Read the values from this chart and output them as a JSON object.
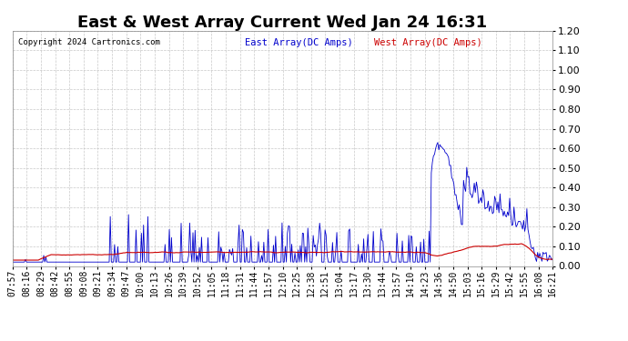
{
  "title": "East & West Array Current Wed Jan 24 16:31",
  "copyright": "Copyright 2024 Cartronics.com",
  "legend_east": "East Array(DC Amps)",
  "legend_west": "West Array(DC Amps)",
  "east_color": "#0000cc",
  "west_color": "#cc0000",
  "ylim": [
    0.0,
    1.2
  ],
  "yticks": [
    0.0,
    0.1,
    0.2,
    0.3,
    0.4,
    0.5,
    0.6,
    0.7,
    0.8,
    0.9,
    1.0,
    1.1,
    1.2
  ],
  "x_labels": [
    "07:57",
    "08:16",
    "08:29",
    "08:42",
    "08:55",
    "09:08",
    "09:21",
    "09:34",
    "09:47",
    "10:00",
    "10:13",
    "10:26",
    "10:39",
    "10:52",
    "11:05",
    "11:18",
    "11:31",
    "11:44",
    "11:57",
    "12:10",
    "12:25",
    "12:38",
    "12:51",
    "13:04",
    "13:17",
    "13:30",
    "13:44",
    "13:57",
    "14:10",
    "14:23",
    "14:36",
    "14:50",
    "15:03",
    "15:16",
    "15:29",
    "15:42",
    "15:55",
    "16:08",
    "16:21"
  ],
  "background_color": "#ffffff",
  "grid_color": "#bbbbbb",
  "title_fontsize": 13,
  "label_fontsize": 7
}
